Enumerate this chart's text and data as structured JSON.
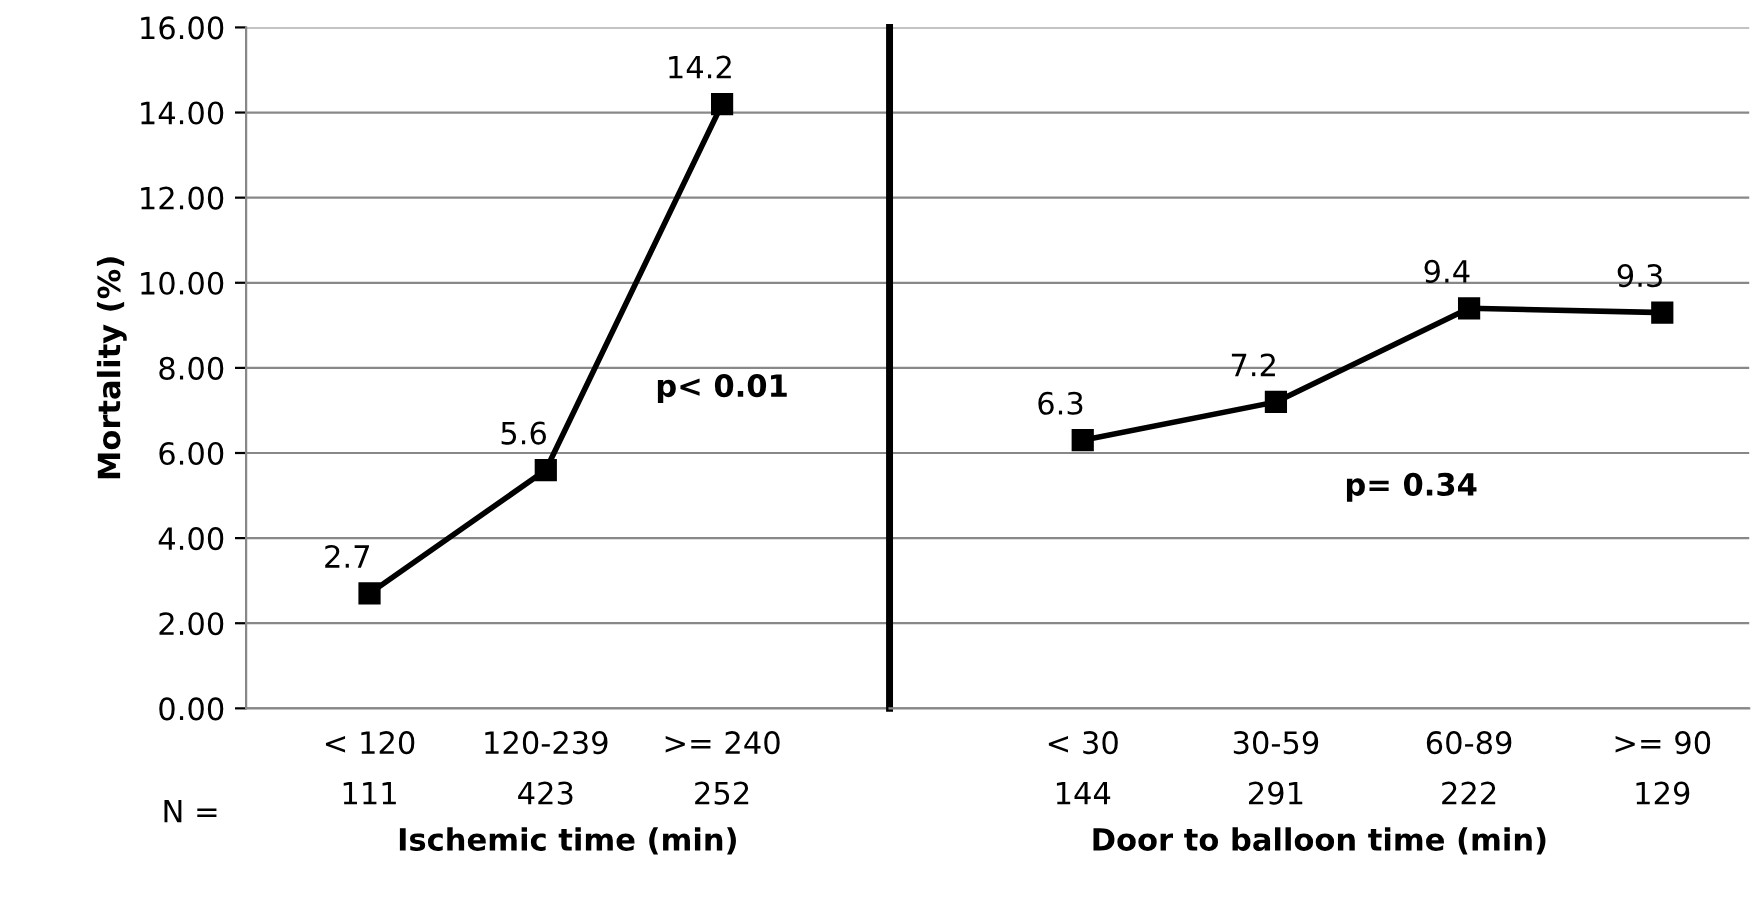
{
  "chart_data": [
    {
      "type": "line",
      "ylabel": "Mortality (%)",
      "xlabel": "Ischemic time (min)",
      "categories": [
        "< 120\n111",
        "120-239\n423",
        ">= 240\n252"
      ],
      "series": [
        {
          "color": "#000000",
          "values": [
            2.7,
            5.6,
            14.2
          ]
        }
      ],
      "ylim": [
        0,
        16
      ],
      "yticks": [
        {
          "value": 0,
          "label": "0.00"
        },
        {
          "value": 2,
          "label": "2.00"
        },
        {
          "value": 4,
          "label": "4.00"
        },
        {
          "value": 6,
          "label": "6.00"
        },
        {
          "value": 8,
          "label": "8.00"
        },
        {
          "value": 10,
          "label": "10.00"
        },
        {
          "value": 12,
          "label": "12.00"
        },
        {
          "value": 14,
          "label": "14.00"
        },
        {
          "value": 16,
          "label": "16.00"
        }
      ],
      "annotations": [
        "N =",
        "p< 0.01"
      ],
      "grid": "y",
      "marker": "square",
      "line_style": "solid",
      "data_labels": true
    },
    {
      "type": "line",
      "xlabel": "Door to balloon time (min)",
      "categories": [
        "< 30\n144",
        "30-59\n291",
        "60-89\n222",
        ">= 90\n129"
      ],
      "series": [
        {
          "color": "#000000",
          "values": [
            6.3,
            7.2,
            9.4,
            9.3
          ]
        }
      ],
      "ylim": [
        0,
        16
      ],
      "annotations": [
        "p= 0.34"
      ],
      "tick_labels": "x",
      "grid": "y",
      "marker": "square",
      "line_style": "solid",
      "data_labels": true
    }
  ]
}
